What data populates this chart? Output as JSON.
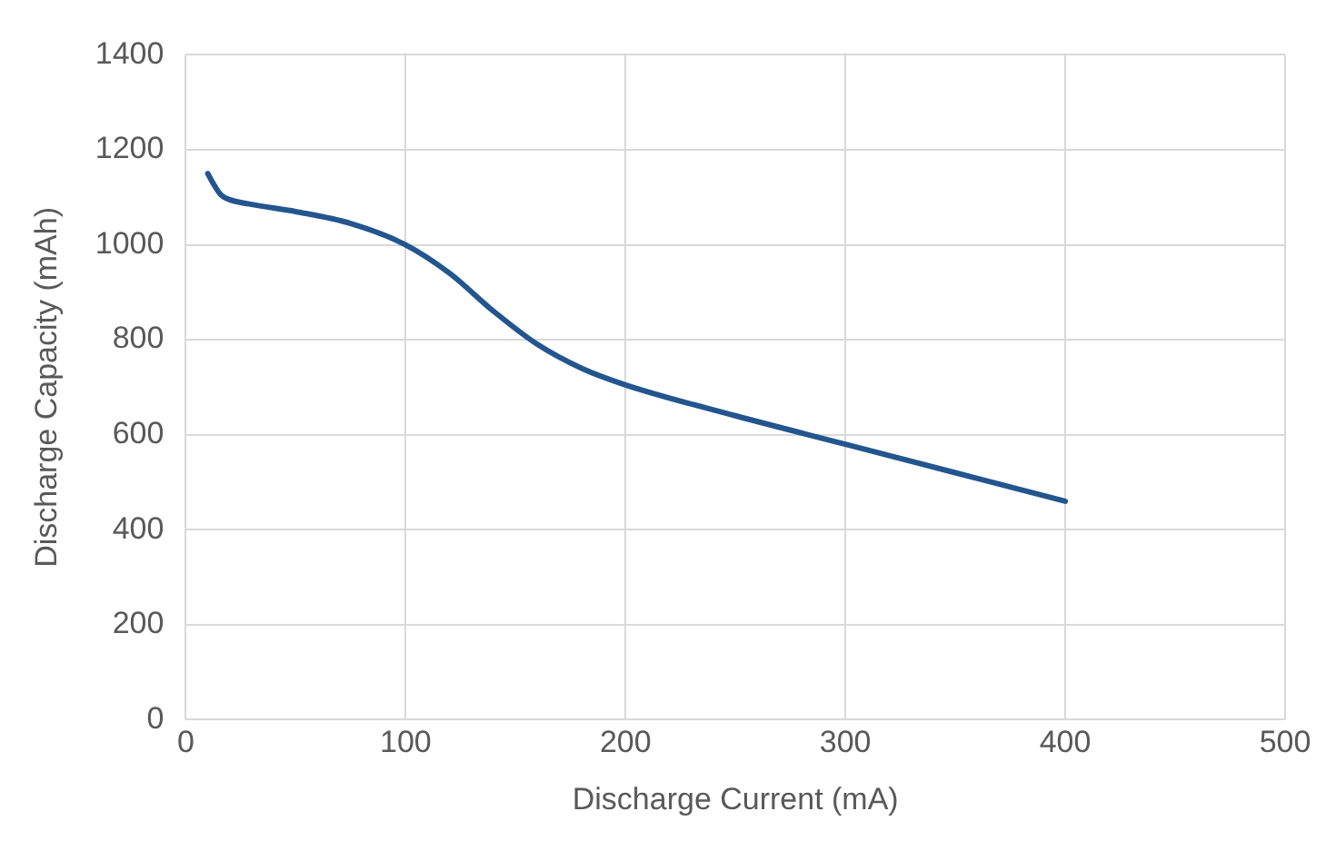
{
  "chart_data": {
    "type": "line",
    "xlabel": "Discharge Current (mA)",
    "ylabel": "Discharge Capacity (mAh)",
    "x": [
      10,
      13,
      16,
      20,
      30,
      50,
      75,
      100,
      120,
      140,
      160,
      180,
      200,
      250,
      300,
      350,
      400
    ],
    "series": [
      {
        "color": "#23558f",
        "values": [
          1150,
          1125,
          1105,
          1095,
          1085,
          1070,
          1045,
          1000,
          940,
          860,
          790,
          740,
          705,
          640,
          580,
          520,
          460
        ]
      }
    ],
    "xlim": [
      0,
      500
    ],
    "xticks": [
      0,
      100,
      200,
      300,
      400,
      500
    ],
    "ylim": [
      0,
      1400
    ],
    "yticks": [
      0,
      200,
      400,
      600,
      800,
      1000,
      1200,
      1400
    ],
    "grid": true,
    "legend": false,
    "marker": "none",
    "line_style": "solid"
  }
}
